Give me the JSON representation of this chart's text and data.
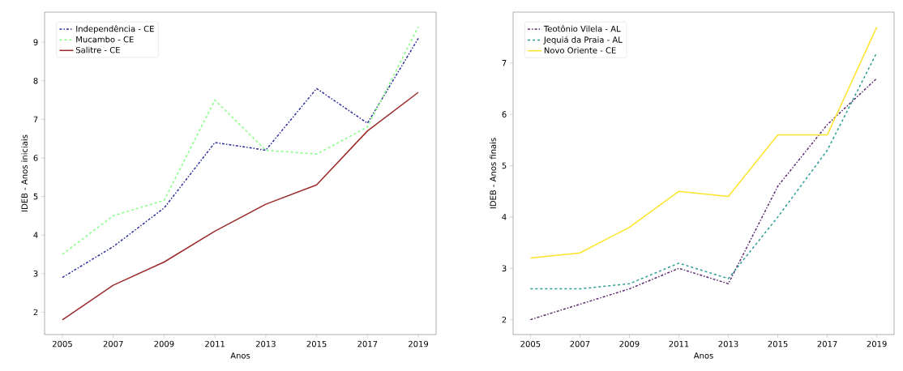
{
  "chart_data": [
    {
      "type": "line",
      "xlabel": "Anos",
      "ylabel": "IDEB - Anos iniciais",
      "x": [
        2005,
        2007,
        2009,
        2011,
        2013,
        2015,
        2017,
        2019
      ],
      "xlim": [
        2004.3,
        2019.7
      ],
      "xticks": [
        2005,
        2007,
        2009,
        2011,
        2013,
        2015,
        2017,
        2019
      ],
      "ylim": [
        1.42,
        9.78
      ],
      "yticks": [
        2,
        3,
        4,
        5,
        6,
        7,
        8,
        9
      ],
      "legend": "top left",
      "grid": false,
      "series": [
        {
          "name": "Independência - CE",
          "color": "#2b2c9b",
          "line_style": "dashdot",
          "values": [
            2.9,
            3.7,
            4.7,
            6.4,
            6.2,
            7.8,
            6.9,
            9.1
          ]
        },
        {
          "name": "Mucambo - CE",
          "color": "#80ff80",
          "line_style": "dashed",
          "values": [
            3.5,
            4.5,
            4.9,
            7.5,
            6.2,
            6.1,
            6.8,
            9.4
          ]
        },
        {
          "name": "Salitre - CE",
          "color": "#9b2a2a",
          "line_style": "solid",
          "values": [
            1.8,
            2.7,
            3.3,
            4.1,
            4.8,
            5.3,
            6.7,
            7.7
          ]
        }
      ]
    },
    {
      "type": "line",
      "xlabel": "Anos",
      "ylabel": "IDEB - Anos finais",
      "x": [
        2005,
        2007,
        2009,
        2011,
        2013,
        2015,
        2017,
        2019
      ],
      "xlim": [
        2004.3,
        2019.7
      ],
      "xticks": [
        2005,
        2007,
        2009,
        2011,
        2013,
        2015,
        2017,
        2019
      ],
      "ylim": [
        1.71,
        7.99
      ],
      "yticks": [
        2,
        3,
        4,
        5,
        6,
        7
      ],
      "legend": "top left",
      "grid": false,
      "series": [
        {
          "name": "Teotônio Vilela - AL",
          "color": "#5b2a6e",
          "line_style": "dashdot",
          "values": [
            2.0,
            2.3,
            2.6,
            3.0,
            2.7,
            4.6,
            5.8,
            6.7
          ]
        },
        {
          "name": "Jequiá da Praia - AL",
          "color": "#2a9d94",
          "line_style": "dashed",
          "values": [
            2.6,
            2.6,
            2.7,
            3.1,
            2.8,
            4.0,
            5.3,
            7.2
          ]
        },
        {
          "name": "Novo Oriente - CE",
          "color": "#fde32a",
          "line_style": "solid",
          "values": [
            3.2,
            3.3,
            3.8,
            4.5,
            4.4,
            5.6,
            5.6,
            7.7
          ]
        }
      ]
    }
  ]
}
